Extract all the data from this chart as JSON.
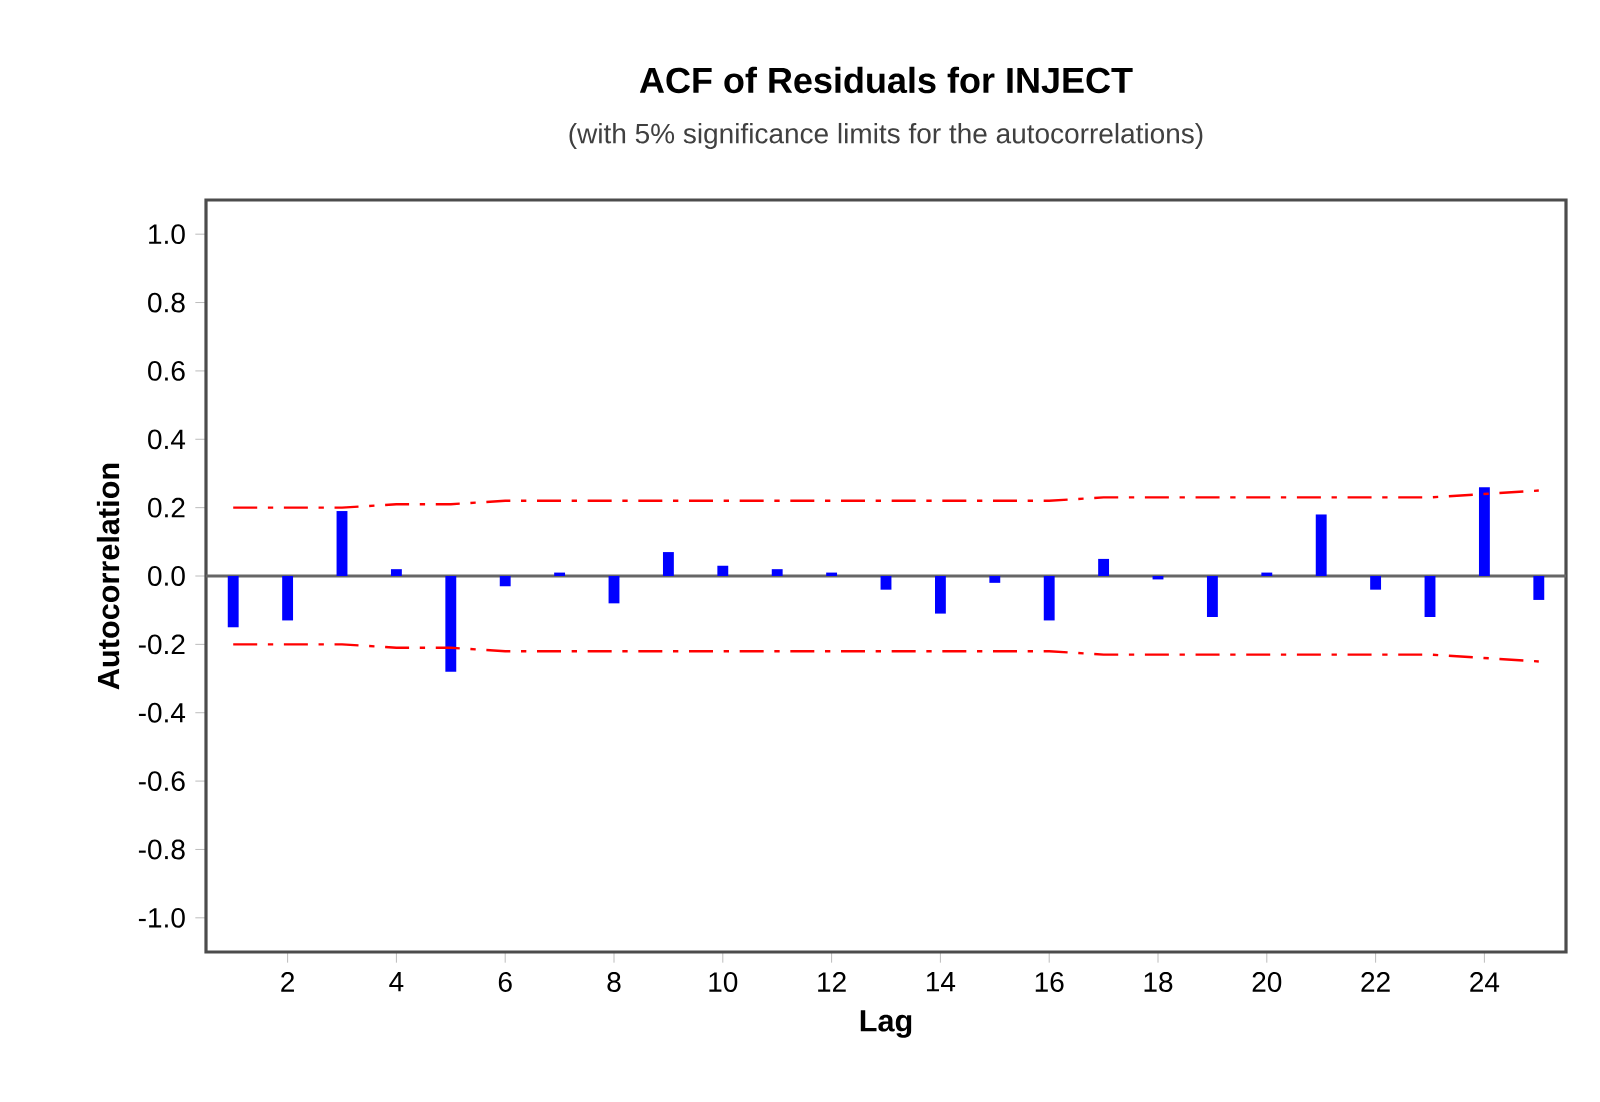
{
  "chart_data": {
    "type": "bar",
    "title": "ACF of Residuals for INJECT",
    "subtitle": "(with 5% significance limits for the autocorrelations)",
    "xlabel": "Lag",
    "ylabel": "Autocorrelation",
    "x": [
      1,
      2,
      3,
      4,
      5,
      6,
      7,
      8,
      9,
      10,
      11,
      12,
      13,
      14,
      15,
      16,
      17,
      18,
      19,
      20,
      21,
      22,
      23,
      24,
      25
    ],
    "xlim": [
      0.5,
      25.5
    ],
    "xticks": [
      2,
      4,
      6,
      8,
      10,
      12,
      14,
      16,
      18,
      20,
      22,
      24
    ],
    "ylim": [
      -1.1,
      1.1
    ],
    "yticks": [
      {
        "value": -1,
        "label": "-1.0"
      },
      {
        "value": -0.8,
        "label": "-0.8"
      },
      {
        "value": -0.6,
        "label": "-0.6"
      },
      {
        "value": -0.4,
        "label": "-0.4"
      },
      {
        "value": -0.2,
        "label": "-0.2"
      },
      {
        "value": 0,
        "label": "0.0"
      },
      {
        "value": 0.2,
        "label": "0.2"
      },
      {
        "value": 0.4,
        "label": "0.4"
      },
      {
        "value": 0.6,
        "label": "0.6"
      },
      {
        "value": 0.8,
        "label": "0.8"
      },
      {
        "value": 1,
        "label": "1.0"
      }
    ],
    "series": [
      {
        "color": "#0000ff",
        "values": [
          -0.15,
          -0.13,
          0.19,
          0.02,
          -0.28,
          -0.03,
          0.01,
          -0.08,
          0.07,
          0.03,
          0.02,
          0.01,
          -0.04,
          -0.11,
          -0.02,
          -0.13,
          0.05,
          -0.01,
          -0.12,
          0.01,
          0.18,
          -0.04,
          -0.12,
          0.26,
          -0.07
        ]
      },
      {
        "type": "line",
        "color": "#ff0000",
        "line_style": "dashed",
        "values": [
          0.2,
          0.2,
          0.2,
          0.21,
          0.21,
          0.22,
          0.22,
          0.22,
          0.22,
          0.22,
          0.22,
          0.22,
          0.22,
          0.22,
          0.22,
          0.22,
          0.23,
          0.23,
          0.23,
          0.23,
          0.23,
          0.23,
          0.23,
          0.24,
          0.25
        ]
      },
      {
        "type": "line",
        "color": "#ff0000",
        "line_style": "dashed",
        "values": [
          -0.2,
          -0.2,
          -0.2,
          -0.21,
          -0.21,
          -0.22,
          -0.22,
          -0.22,
          -0.22,
          -0.22,
          -0.22,
          -0.22,
          -0.22,
          -0.22,
          -0.22,
          -0.22,
          -0.23,
          -0.23,
          -0.23,
          -0.23,
          -0.23,
          -0.23,
          -0.23,
          -0.24,
          -0.25
        ]
      }
    ],
    "ref_lines": [
      {
        "axis": "y",
        "value": 0,
        "color": "#666666"
      }
    ]
  }
}
